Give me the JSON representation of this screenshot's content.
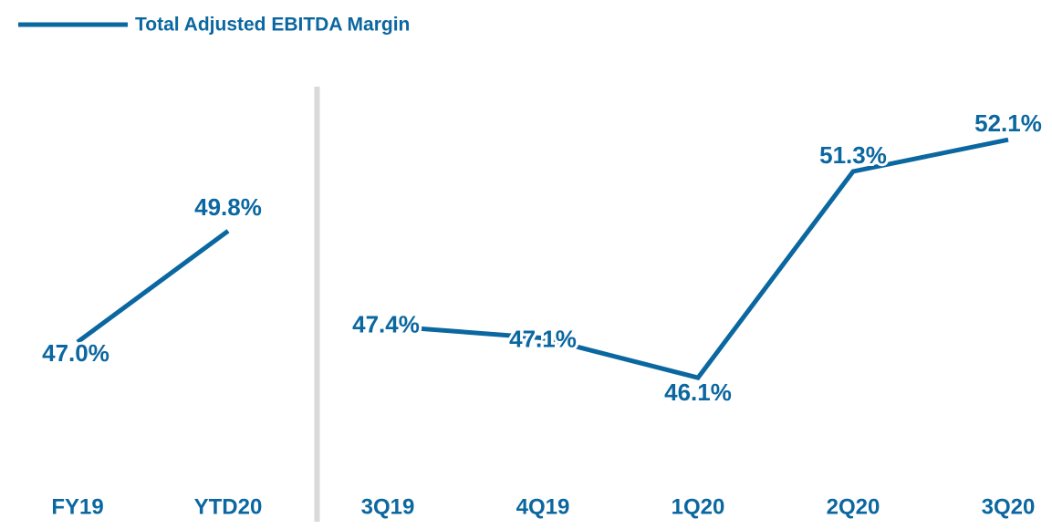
{
  "chart_data": {
    "type": "line",
    "categories": [
      "FY19",
      "YTD20",
      "3Q19",
      "4Q19",
      "1Q20",
      "2Q20",
      "3Q20"
    ],
    "series": [
      {
        "name": "Total Adjusted EBITDA Margin",
        "color": "#0b67a0",
        "values": [
          47.0,
          49.8,
          47.4,
          47.1,
          46.1,
          51.3,
          52.1
        ],
        "value_labels": [
          "47.0%",
          "49.8%",
          "47.4%",
          "47.1%",
          "46.1%",
          "51.3%",
          "52.1%"
        ]
      }
    ],
    "ylim": [
      43,
      53
    ],
    "divider_after": 1,
    "legend": "top-left"
  }
}
